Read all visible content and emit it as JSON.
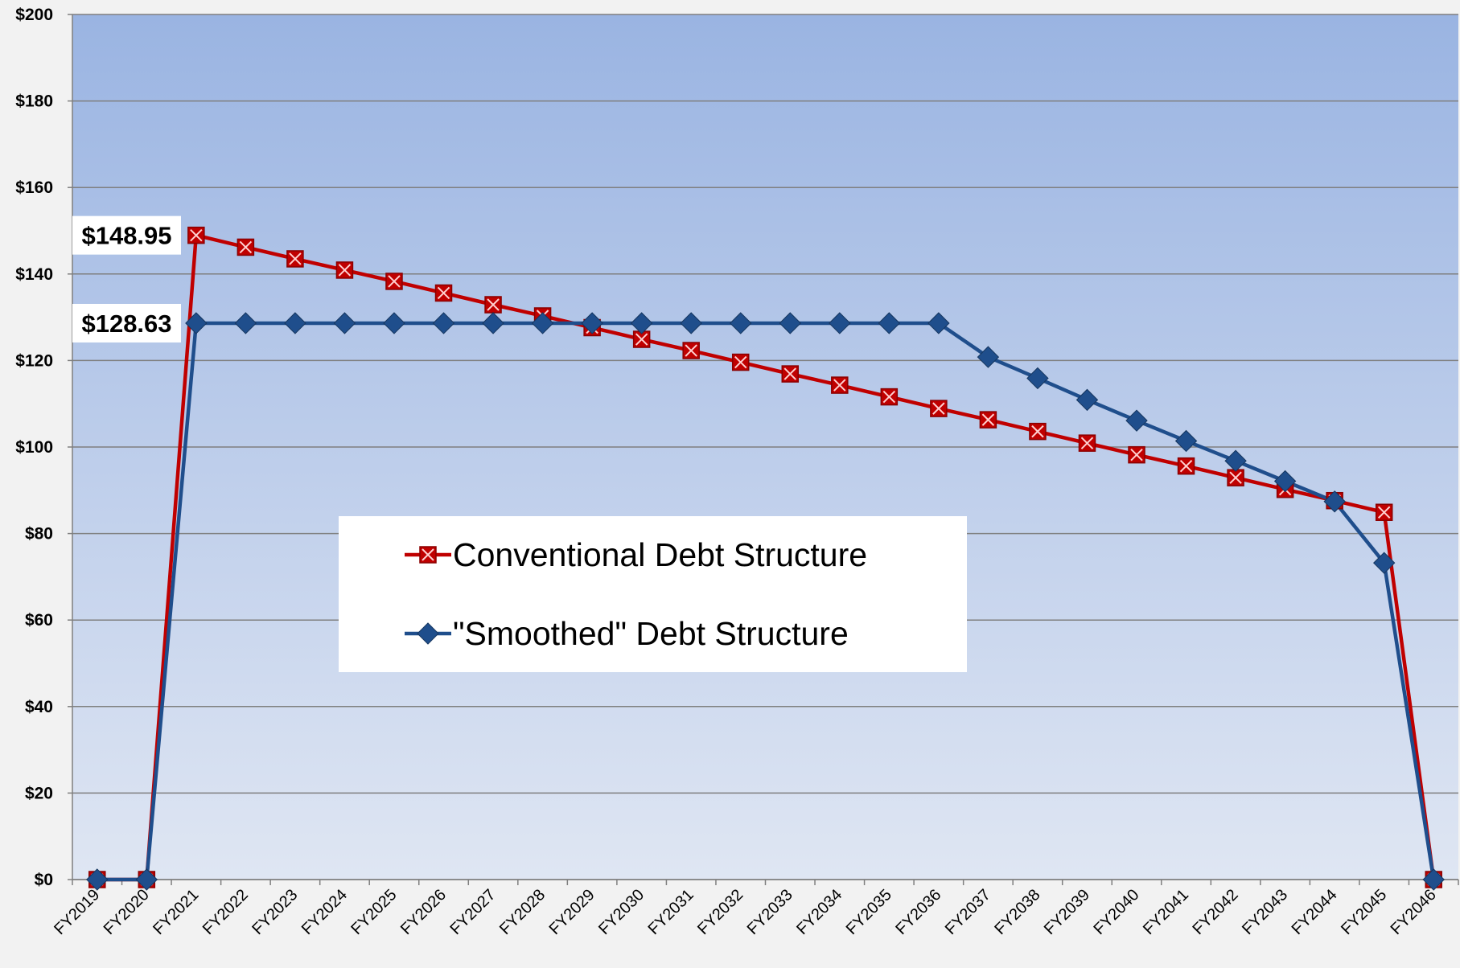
{
  "chart_data": {
    "type": "line",
    "title": "",
    "xlabel": "",
    "ylabel": "",
    "ylim": [
      0,
      200
    ],
    "yticks": [
      0,
      20,
      40,
      60,
      80,
      100,
      120,
      140,
      160,
      180,
      200
    ],
    "ytick_labels": [
      "$0",
      "$20",
      "$40",
      "$60",
      "$80",
      "$100",
      "$120",
      "$140",
      "$160",
      "$180",
      "$200"
    ],
    "categories": [
      "FY2019",
      "FY2020",
      "FY2021",
      "FY2022",
      "FY2023",
      "FY2024",
      "FY2025",
      "FY2026",
      "FY2027",
      "FY2028",
      "FY2029",
      "FY2030",
      "FY2031",
      "FY2032",
      "FY2033",
      "FY2034",
      "FY2035",
      "FY2036",
      "FY2037",
      "FY2038",
      "FY2039",
      "FY2040",
      "FY2041",
      "FY2042",
      "FY2043",
      "FY2044",
      "FY2045",
      "FY2046"
    ],
    "grid": true,
    "legend_position": "center-left",
    "series": [
      {
        "name": "Conventional Debt Structure",
        "color": "#c00000",
        "marker": "square-x",
        "values": [
          0,
          0,
          148.95,
          146.2,
          143.5,
          140.9,
          138.3,
          135.6,
          132.9,
          130.3,
          127.6,
          124.9,
          122.3,
          119.6,
          116.9,
          114.3,
          111.6,
          108.9,
          106.3,
          103.6,
          100.9,
          98.2,
          95.6,
          92.9,
          90.2,
          87.6,
          84.9,
          0
        ]
      },
      {
        "name": "\"Smoothed\" Debt Structure",
        "color": "#1f4e8c",
        "marker": "diamond",
        "values": [
          0,
          0,
          128.63,
          128.63,
          128.63,
          128.63,
          128.63,
          128.63,
          128.63,
          128.63,
          128.63,
          128.63,
          128.63,
          128.63,
          128.63,
          128.63,
          128.63,
          128.63,
          120.8,
          115.9,
          110.9,
          106.1,
          101.4,
          96.8,
          92.1,
          87.4,
          73.2,
          0
        ]
      }
    ],
    "annotations": [
      {
        "text": "$148.95",
        "series": 0,
        "index": 2
      },
      {
        "text": "$128.63",
        "series": 1,
        "index": 2
      }
    ]
  }
}
